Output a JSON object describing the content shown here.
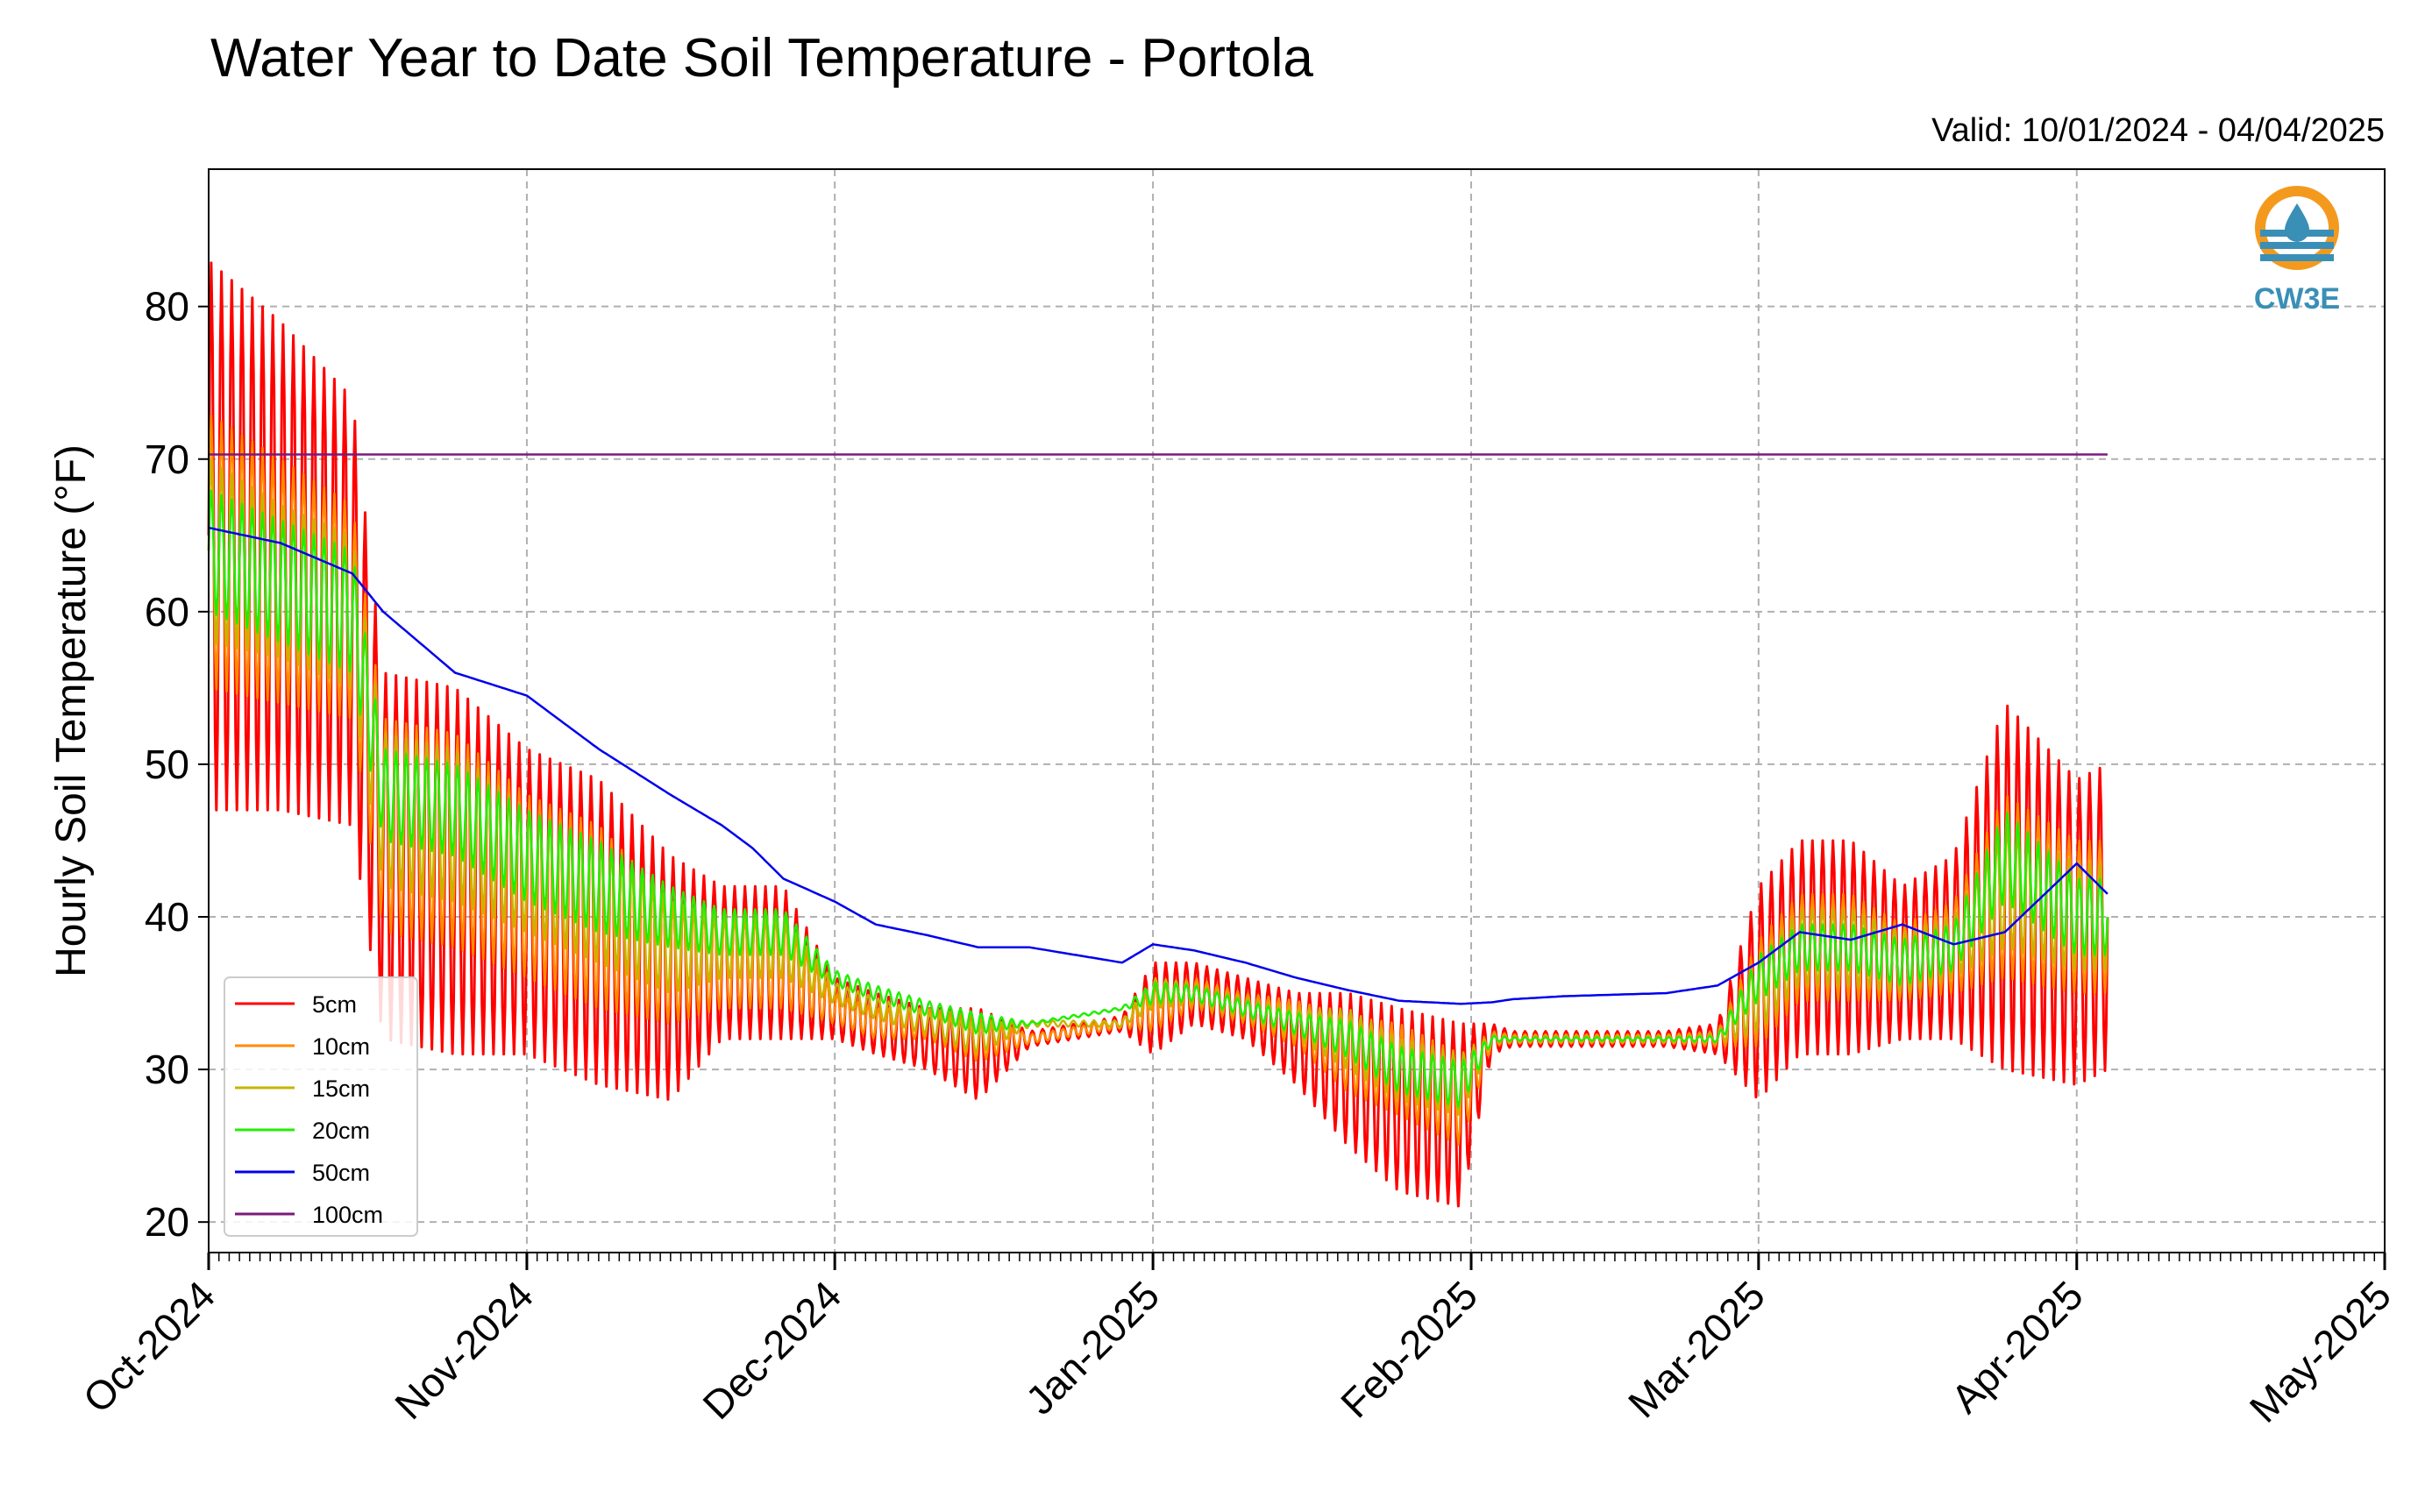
{
  "chart_data": {
    "type": "line",
    "title": "Water Year to Date Soil Temperature - Portola",
    "subtitle": "Valid: 10/01/2024 - 04/04/2025",
    "ylabel": "Hourly Soil Temperature (°F)",
    "xlabel": "",
    "ylim": [
      18,
      89
    ],
    "yticks": [
      20,
      30,
      40,
      50,
      60,
      70,
      80
    ],
    "xlim": [
      "2024-10-01",
      "2025-05-01"
    ],
    "xticks": [
      {
        "date": "2024-10-01",
        "label": "Oct-2024"
      },
      {
        "date": "2024-11-01",
        "label": "Nov-2024"
      },
      {
        "date": "2024-12-01",
        "label": "Dec-2024"
      },
      {
        "date": "2025-01-01",
        "label": "Jan-2025"
      },
      {
        "date": "2025-02-01",
        "label": "Feb-2025"
      },
      {
        "date": "2025-03-01",
        "label": "Mar-2025"
      },
      {
        "date": "2025-04-01",
        "label": "Apr-2025"
      },
      {
        "date": "2025-05-01",
        "label": "May-2025"
      }
    ],
    "grid": true,
    "legend_position": "bottom-left",
    "logo_text": "CW3E",
    "series": [
      {
        "name": "5cm",
        "color": "#ff0000",
        "x": [
          "2024-10-01",
          "2024-10-08",
          "2024-10-15",
          "2024-10-18",
          "2024-10-25",
          "2024-11-01",
          "2024-11-08",
          "2024-11-15",
          "2024-11-20",
          "2024-11-23",
          "2024-11-26",
          "2024-12-01",
          "2024-12-05",
          "2024-12-10",
          "2024-12-15",
          "2024-12-20",
          "2024-12-29",
          "2025-01-01",
          "2025-01-05",
          "2025-01-10",
          "2025-01-15",
          "2025-01-20",
          "2025-01-25",
          "2025-01-31",
          "2025-02-03",
          "2025-02-05",
          "2025-02-10",
          "2025-02-15",
          "2025-02-20",
          "2025-02-25",
          "2025-03-01",
          "2025-03-05",
          "2025-03-10",
          "2025-03-15",
          "2025-03-20",
          "2025-03-25",
          "2025-04-01",
          "2025-04-04"
        ],
        "mid": [
          65,
          63,
          60,
          44,
          43,
          41,
          39,
          36,
          37,
          37,
          37,
          34,
          33,
          32,
          31,
          32,
          33,
          34,
          35,
          34,
          32,
          30,
          28,
          27,
          32,
          32,
          32,
          32,
          32,
          32,
          35,
          38,
          38,
          37,
          38,
          42,
          39,
          40
        ],
        "amp": [
          18,
          16,
          14,
          12,
          12,
          10,
          10,
          8,
          5,
          5,
          5,
          2,
          2,
          2,
          3,
          0.5,
          0.5,
          3,
          2,
          2,
          3,
          5,
          6,
          6,
          1,
          0.5,
          0.5,
          0.5,
          0.5,
          1,
          7,
          7,
          7,
          5,
          6,
          12,
          10,
          10
        ]
      },
      {
        "name": "10cm",
        "color": "#ff8c00",
        "x": [
          "2024-10-01",
          "2024-10-08",
          "2024-10-15",
          "2024-10-18",
          "2024-10-25",
          "2024-11-01",
          "2024-11-08",
          "2024-11-15",
          "2024-11-20",
          "2024-11-23",
          "2024-11-26",
          "2024-12-01",
          "2024-12-05",
          "2024-12-10",
          "2024-12-15",
          "2024-12-20",
          "2024-12-29",
          "2025-01-01",
          "2025-01-05",
          "2025-01-10",
          "2025-01-15",
          "2025-01-20",
          "2025-01-25",
          "2025-01-31",
          "2025-02-03",
          "2025-02-05",
          "2025-02-10",
          "2025-02-15",
          "2025-02-20",
          "2025-02-25",
          "2025-03-01",
          "2025-03-05",
          "2025-03-10",
          "2025-03-15",
          "2025-03-20",
          "2025-03-25",
          "2025-04-01",
          "2025-04-04"
        ],
        "mid": [
          64,
          62,
          60,
          46,
          45,
          42,
          40,
          37,
          37,
          37,
          37,
          34,
          33,
          33,
          32,
          32,
          33,
          34,
          35,
          34,
          33,
          31,
          30,
          28,
          32,
          32,
          32,
          32,
          32,
          32,
          35,
          38,
          38,
          37,
          38,
          42,
          40,
          40
        ],
        "amp": [
          9,
          8,
          7,
          7,
          7,
          6,
          6,
          4,
          3,
          3,
          3,
          1,
          1,
          1,
          1.5,
          0.3,
          0.3,
          1.5,
          1,
          1,
          1.5,
          2.5,
          3,
          3,
          0.5,
          0.3,
          0.3,
          0.3,
          0.3,
          0.5,
          3.5,
          3.5,
          3.5,
          2.5,
          3,
          6,
          5,
          5
        ]
      },
      {
        "name": "15cm",
        "color": "#c8b400",
        "x": [
          "2024-10-01",
          "2024-10-08",
          "2024-10-15",
          "2024-10-18",
          "2024-10-25",
          "2024-11-01",
          "2024-11-08",
          "2024-11-15",
          "2024-11-20",
          "2024-11-23",
          "2024-11-26",
          "2024-12-01",
          "2024-12-05",
          "2024-12-10",
          "2024-12-15",
          "2024-12-20",
          "2024-12-29",
          "2025-01-01",
          "2025-01-05",
          "2025-01-10",
          "2025-01-15",
          "2025-01-20",
          "2025-01-25",
          "2025-01-31",
          "2025-02-03",
          "2025-02-05",
          "2025-02-10",
          "2025-02-15",
          "2025-02-20",
          "2025-02-25",
          "2025-03-01",
          "2025-03-05",
          "2025-03-10",
          "2025-03-15",
          "2025-03-20",
          "2025-03-25",
          "2025-04-01",
          "2025-04-04"
        ],
        "mid": [
          64,
          62,
          60,
          47,
          46,
          43,
          41,
          38,
          38,
          38,
          38,
          35,
          34,
          33,
          32,
          33,
          33,
          35,
          35,
          34,
          33,
          32,
          30,
          29,
          32,
          32,
          32,
          32,
          32,
          32,
          35,
          38,
          38,
          37,
          38,
          42,
          40,
          40
        ],
        "amp": [
          6,
          5,
          5,
          5,
          5,
          4,
          4,
          3,
          2,
          2,
          2,
          0.7,
          0.7,
          0.7,
          1,
          0.2,
          0.2,
          1,
          0.7,
          0.7,
          1,
          2,
          2,
          2,
          0.3,
          0.2,
          0.2,
          0.2,
          0.2,
          0.3,
          2.5,
          2.5,
          2.5,
          2,
          2,
          4,
          3.5,
          3.5
        ]
      },
      {
        "name": "20cm",
        "color": "#22ee00",
        "x": [
          "2024-10-01",
          "2024-10-08",
          "2024-10-15",
          "2024-10-18",
          "2024-10-25",
          "2024-11-01",
          "2024-11-08",
          "2024-11-15",
          "2024-11-20",
          "2024-11-23",
          "2024-11-26",
          "2024-12-01",
          "2024-12-05",
          "2024-12-10",
          "2024-12-15",
          "2024-12-20",
          "2024-12-29",
          "2025-01-01",
          "2025-01-05",
          "2025-01-10",
          "2025-01-15",
          "2025-01-20",
          "2025-01-25",
          "2025-01-31",
          "2025-02-03",
          "2025-02-05",
          "2025-02-10",
          "2025-02-15",
          "2025-02-20",
          "2025-02-25",
          "2025-03-01",
          "2025-03-05",
          "2025-03-10",
          "2025-03-15",
          "2025-03-20",
          "2025-03-25",
          "2025-04-01",
          "2025-04-04"
        ],
        "mid": [
          64,
          62,
          60,
          48,
          47,
          44,
          42,
          40,
          39,
          39,
          39,
          36,
          35,
          34,
          33,
          33,
          34,
          35,
          35,
          34,
          33,
          32,
          30,
          29,
          32,
          32,
          32,
          32,
          32,
          32,
          36,
          38,
          38,
          37,
          38,
          44,
          40,
          40
        ],
        "amp": [
          4,
          4,
          4,
          3,
          3,
          3,
          3,
          2,
          1.5,
          1.5,
          1.5,
          0.5,
          0.5,
          0.5,
          0.7,
          0.1,
          0.1,
          0.7,
          0.5,
          0.5,
          0.7,
          1.2,
          1.5,
          1.5,
          0.2,
          0.1,
          0.1,
          0.1,
          0.1,
          0.2,
          1.5,
          1.5,
          1.5,
          1.5,
          1.5,
          3,
          2.5,
          2.5
        ]
      },
      {
        "name": "50cm",
        "color": "#0000ee",
        "x": [
          "2024-10-01",
          "2024-10-08",
          "2024-10-15",
          "2024-10-18",
          "2024-10-25",
          "2024-11-01",
          "2024-11-08",
          "2024-11-15",
          "2024-11-20",
          "2024-11-23",
          "2024-11-26",
          "2024-12-01",
          "2024-12-05",
          "2024-12-10",
          "2024-12-15",
          "2024-12-20",
          "2024-12-29",
          "2025-01-01",
          "2025-01-05",
          "2025-01-10",
          "2025-01-15",
          "2025-01-20",
          "2025-01-25",
          "2025-01-31",
          "2025-02-03",
          "2025-02-05",
          "2025-02-10",
          "2025-02-15",
          "2025-02-20",
          "2025-02-25",
          "2025-03-01",
          "2025-03-05",
          "2025-03-10",
          "2025-03-15",
          "2025-03-20",
          "2025-03-25",
          "2025-04-01",
          "2025-04-04"
        ],
        "y": [
          65.5,
          64.5,
          62.5,
          60,
          56,
          54.5,
          51,
          48,
          46,
          44.5,
          42.5,
          41,
          39.5,
          38.8,
          38,
          38,
          37,
          38.2,
          37.8,
          37,
          36,
          35.2,
          34.5,
          34.3,
          34.4,
          34.6,
          34.8,
          34.9,
          35,
          35.5,
          37,
          39,
          38.5,
          39.5,
          38.2,
          39,
          43.5,
          41.5
        ],
        "amp": [
          0,
          0,
          0,
          0,
          0,
          0,
          0,
          0,
          0,
          0,
          0,
          0,
          0,
          0,
          0,
          0,
          0,
          0,
          0,
          0,
          0,
          0,
          0,
          0,
          0,
          0,
          0,
          0,
          0,
          0,
          0,
          0,
          0,
          0,
          0,
          0,
          0,
          0
        ]
      },
      {
        "name": "100cm",
        "color": "#7b1a7b",
        "x": [
          "2024-10-01",
          "2025-04-04"
        ],
        "y": [
          70.3,
          70.3
        ]
      }
    ]
  }
}
